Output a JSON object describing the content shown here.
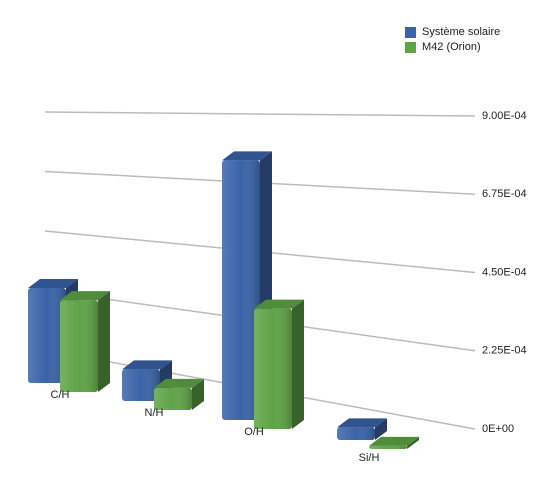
{
  "chart_data": {
    "type": "bar3d",
    "categories": [
      "C/H",
      "N/H",
      "O/H",
      "Si/H"
    ],
    "series": [
      {
        "name": "Système solaire",
        "color": "#3a63a8",
        "values": [
          0.0003,
          0.0001,
          0.00082,
          4e-05
        ]
      },
      {
        "name": "M42 (Orion)",
        "color": "#5fa347",
        "values": [
          0.00029,
          7e-05,
          0.00038,
          1e-05
        ]
      }
    ],
    "ylim": [
      0,
      0.0009
    ],
    "yticks": [
      {
        "value": 0,
        "label": "0E+00"
      },
      {
        "value": 0.000225,
        "label": "2.25E-04"
      },
      {
        "value": 0.00045,
        "label": "4.50E-04"
      },
      {
        "value": 0.000675,
        "label": "6.75E-04"
      },
      {
        "value": 0.0009,
        "label": "9.00E-04"
      }
    ],
    "grid": true,
    "legend": "top-right"
  }
}
